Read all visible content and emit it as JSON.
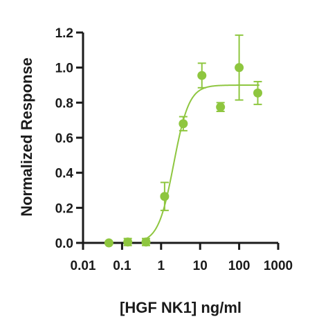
{
  "chart_data": {
    "type": "scatter",
    "xlabel": "[HGF NK1] ng/ml",
    "ylabel": "Normalized Response",
    "x_scale": "log",
    "xlim": [
      0.01,
      1000
    ],
    "ylim": [
      0,
      1.2
    ],
    "x_ticks": [
      0.01,
      0.1,
      1,
      10,
      100,
      1000
    ],
    "x_tick_labels": [
      "0.01",
      "0.1",
      "1",
      "10",
      "100",
      "1000"
    ],
    "y_ticks": [
      0,
      0.2,
      0.4,
      0.6,
      0.8,
      1.0,
      1.2
    ],
    "y_tick_labels": [
      "0.0",
      "0.2",
      "0.4",
      "0.6",
      "0.8",
      "1.0",
      "1.2"
    ],
    "grid": false,
    "color": "#8ec63f",
    "points": [
      {
        "x": 0.046,
        "y": 0.0,
        "err": 0.0
      },
      {
        "x": 0.14,
        "y": 0.005,
        "err": 0.02
      },
      {
        "x": 0.41,
        "y": 0.005,
        "err": 0.02
      },
      {
        "x": 1.23,
        "y": 0.265,
        "err": 0.08
      },
      {
        "x": 3.7,
        "y": 0.68,
        "err": 0.04
      },
      {
        "x": 11.1,
        "y": 0.955,
        "err": 0.07
      },
      {
        "x": 33.3,
        "y": 0.775,
        "err": 0.025
      },
      {
        "x": 100,
        "y": 1.0,
        "err": 0.185
      },
      {
        "x": 300,
        "y": 0.855,
        "err": 0.065
      }
    ],
    "fit": {
      "bottom": 0.0,
      "top": 0.9,
      "ec50": 2.1,
      "hill": 2.2
    }
  }
}
